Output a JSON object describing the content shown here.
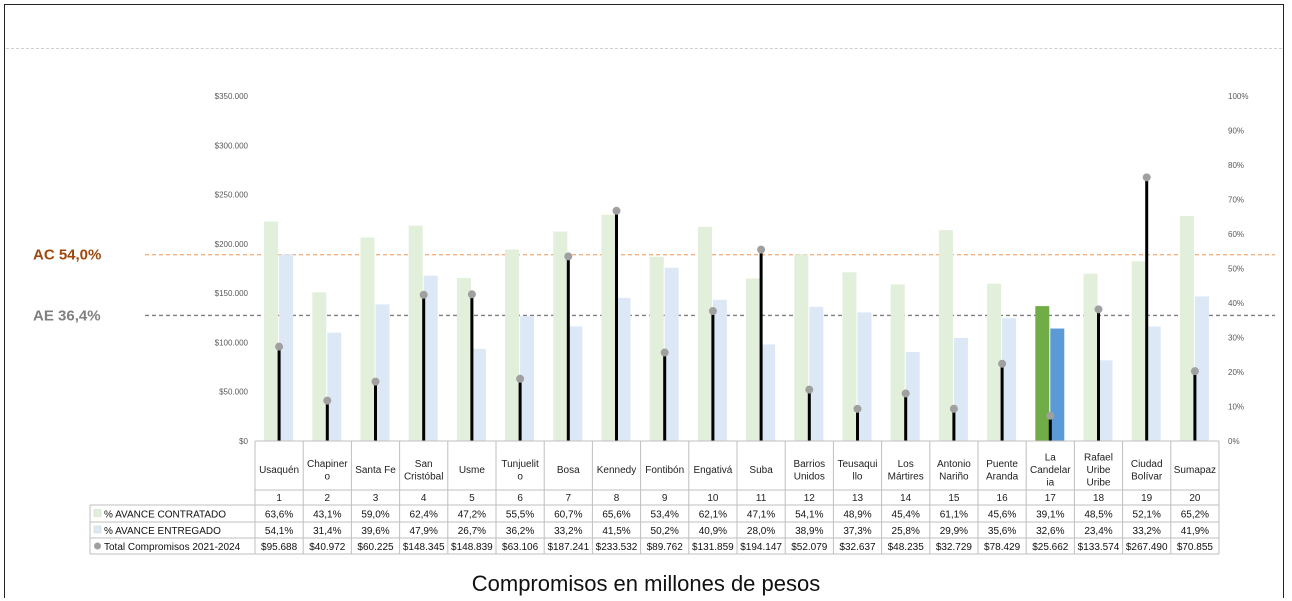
{
  "chart_data": {
    "type": "bar",
    "subtitle": "Compromisos en millones de pesos",
    "categories": [
      "Usaquén",
      "Chapinero",
      "Santa Fe",
      "San Cristóbal",
      "Usme",
      "Tunjuelito",
      "Bosa",
      "Kennedy",
      "Fontibón",
      "Engativá",
      "Suba",
      "Barrios Unidos",
      "Teusaquillo",
      "Los Mártires",
      "Antonio Nariño",
      "Puente Aranda",
      "La Candelaria",
      "Rafael Uribe Uribe",
      "Ciudad Bolívar",
      "Sumapaz"
    ],
    "category_label_lines": [
      [
        "Usaquén"
      ],
      [
        "Chapiner",
        "o"
      ],
      [
        "Santa Fe"
      ],
      [
        "San",
        "Cristóbal"
      ],
      [
        "Usme"
      ],
      [
        "Tunjuelit",
        "o"
      ],
      [
        "Bosa"
      ],
      [
        "Kennedy"
      ],
      [
        "Fontibón"
      ],
      [
        "Engativá"
      ],
      [
        "Suba"
      ],
      [
        "Barrios",
        "Unidos"
      ],
      [
        "Teusaqui",
        "llo"
      ],
      [
        "Los",
        "Mártires"
      ],
      [
        "Antonio",
        "Nariño"
      ],
      [
        "Puente",
        "Aranda"
      ],
      [
        "La",
        "Candelar",
        "ia"
      ],
      [
        "Rafael",
        "Uribe",
        "Uribe"
      ],
      [
        "Ciudad",
        "Bolívar"
      ],
      [
        "Sumapaz"
      ]
    ],
    "numbers": [
      "1",
      "2",
      "3",
      "4",
      "5",
      "6",
      "7",
      "8",
      "9",
      "10",
      "11",
      "12",
      "13",
      "14",
      "15",
      "16",
      "17",
      "18",
      "19",
      "20"
    ],
    "highlight_index": 16,
    "series": [
      {
        "name": "% AVANCE CONTRATADO",
        "axis": "right",
        "kind": "bar",
        "color": "#e2efda",
        "highlight_color": "#70ad47",
        "values": [
          63.6,
          43.1,
          59.0,
          62.4,
          47.2,
          55.5,
          60.7,
          65.6,
          53.4,
          62.1,
          47.1,
          54.1,
          48.9,
          45.4,
          61.1,
          45.6,
          39.1,
          48.5,
          52.1,
          65.2
        ],
        "labels": [
          "63,6%",
          "43,1%",
          "59,0%",
          "62,4%",
          "47,2%",
          "55,5%",
          "60,7%",
          "65,6%",
          "53,4%",
          "62,1%",
          "47,1%",
          "54,1%",
          "48,9%",
          "45,4%",
          "61,1%",
          "45,6%",
          "39,1%",
          "48,5%",
          "52,1%",
          "65,2%"
        ]
      },
      {
        "name": "% AVANCE ENTREGADO",
        "axis": "right",
        "kind": "bar",
        "color": "#dde8f6",
        "highlight_color": "#5b9bd5",
        "values": [
          54.1,
          31.4,
          39.6,
          47.9,
          26.7,
          36.2,
          33.2,
          41.5,
          50.2,
          40.9,
          28.0,
          38.9,
          37.3,
          25.8,
          29.9,
          35.6,
          32.6,
          23.4,
          33.2,
          41.9
        ],
        "labels": [
          "54,1%",
          "31,4%",
          "39,6%",
          "47,9%",
          "26,7%",
          "36,2%",
          "33,2%",
          "41,5%",
          "50,2%",
          "40,9%",
          "28,0%",
          "38,9%",
          "37,3%",
          "25,8%",
          "29,9%",
          "35,6%",
          "32,6%",
          "23,4%",
          "33,2%",
          "41,9%"
        ]
      },
      {
        "name": "Total Compromisos 2021-2024",
        "axis": "left",
        "kind": "lollipop",
        "color": "#000000",
        "marker_color": "#a0a0a0",
        "values": [
          95688,
          40972,
          60225,
          148345,
          148839,
          63106,
          187241,
          233532,
          89762,
          131859,
          194147,
          52079,
          32637,
          48235,
          32729,
          78429,
          25662,
          133574,
          267490,
          70855
        ],
        "labels": [
          "$95.688",
          "$40.972",
          "$60.225",
          "$148.345",
          "$148.839",
          "$63.106",
          "$187.241",
          "$233.532",
          "$89.762",
          "$131.859",
          "$194.147",
          "$52.079",
          "$32.637",
          "$48.235",
          "$32.729",
          "$78.429",
          "$25.662",
          "$133.574",
          "$267.490",
          "$70.855"
        ]
      }
    ],
    "y_left": {
      "ylim": [
        0,
        350000
      ],
      "ticks": [
        0,
        50000,
        100000,
        150000,
        200000,
        250000,
        300000,
        350000
      ],
      "tick_labels": [
        "$0",
        "$50.000",
        "$100.000",
        "$150.000",
        "$200.000",
        "$250.000",
        "$300.000",
        "$350.000"
      ]
    },
    "y_right": {
      "ylim": [
        0,
        100
      ],
      "ticks": [
        0,
        10,
        20,
        30,
        40,
        50,
        60,
        70,
        80,
        90,
        100
      ],
      "tick_labels": [
        "0%",
        "10%",
        "20%",
        "30%",
        "40%",
        "50%",
        "60%",
        "70%",
        "80%",
        "90%",
        "100%"
      ]
    },
    "reference_lines": [
      {
        "label": "AC 54,0%",
        "value": 54.0,
        "axis": "right",
        "color": "#f4b183",
        "label_color": "#a0480c"
      },
      {
        "label": "AE 36,4%",
        "value": 36.4,
        "axis": "right",
        "color": "#7f7f7f",
        "label_color": "#808080"
      }
    ],
    "grid": false,
    "legend": "table-below"
  }
}
